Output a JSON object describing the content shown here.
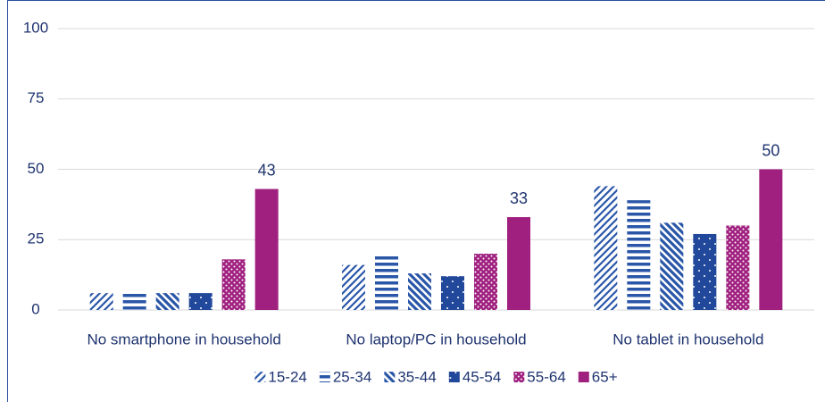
{
  "chart_data": {
    "type": "bar",
    "categories": [
      "No smartphone in household",
      "No laptop/PC in household",
      "No tablet in household"
    ],
    "series": [
      {
        "name": "15-24",
        "color": "#2a56a8",
        "pattern": "light-diagonal",
        "values": [
          6,
          16,
          44
        ]
      },
      {
        "name": "25-34",
        "color": "#2a56a8",
        "pattern": "horizontal",
        "values": [
          6,
          20,
          39
        ]
      },
      {
        "name": "35-44",
        "color": "#2a56a8",
        "pattern": "dark-diagonal",
        "values": [
          6,
          13,
          31
        ]
      },
      {
        "name": "45-54",
        "color": "#21489a",
        "pattern": "sparse-dots",
        "values": [
          6,
          12,
          27
        ]
      },
      {
        "name": "55-64",
        "color": "#a0207f",
        "pattern": "dense-dots",
        "values": [
          18,
          20,
          30
        ]
      },
      {
        "name": "65+",
        "color": "#a0207f",
        "pattern": "solid",
        "data_labels": true,
        "values": [
          43,
          33,
          50
        ]
      }
    ],
    "ylim": [
      0,
      100
    ],
    "yticks": [
      0,
      25,
      50,
      75,
      100
    ],
    "grid": true,
    "legend": "bottom"
  }
}
